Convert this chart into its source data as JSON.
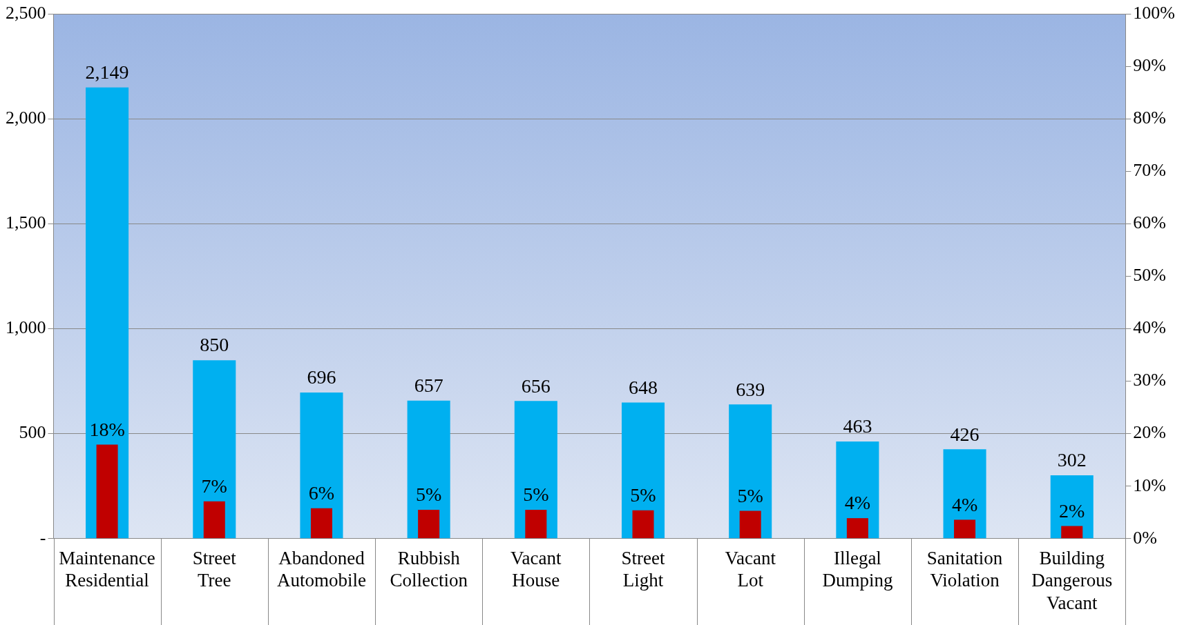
{
  "chart_data": {
    "type": "bar",
    "categories": [
      "Maintenance Residential",
      "Street Tree",
      "Abandoned Automobile",
      "Rubbish Collection",
      "Vacant House",
      "Street Light",
      "Vacant Lot",
      "Illegal Dumping",
      "Sanitation Violation",
      "Building Dangerous Vacant"
    ],
    "series": [
      {
        "color": "#00b0f0",
        "values": [
          2149,
          850,
          696,
          657,
          656,
          648,
          639,
          463,
          426,
          302
        ],
        "value_labels": [
          "2,149",
          "850",
          "696",
          "657",
          "656",
          "648",
          "639",
          "463",
          "426",
          "302"
        ]
      },
      {
        "color": "#c00000",
        "axis": "y2",
        "values": [
          17.9,
          7.1,
          5.8,
          5.5,
          5.5,
          5.4,
          5.3,
          3.9,
          3.6,
          2.4
        ],
        "value_labels": [
          "18%",
          "7%",
          "6%",
          "5%",
          "5%",
          "5%",
          "5%",
          "4%",
          "4%",
          "2%"
        ]
      }
    ],
    "ylim": [
      0,
      2500
    ],
    "yticks": [
      {
        "value": 0,
        "label": "-"
      },
      500,
      {
        "value": 1000,
        "label": "1,000"
      },
      {
        "value": 1500,
        "label": "1,500"
      },
      {
        "value": 2000,
        "label": "2,000"
      },
      {
        "value": 2500,
        "label": "2,500"
      }
    ],
    "y2lim": [
      0,
      100
    ],
    "y2ticks": [
      {
        "value": 0,
        "label": "0%"
      },
      {
        "value": 10,
        "label": "10%"
      },
      {
        "value": 20,
        "label": "20%"
      },
      {
        "value": 30,
        "label": "30%"
      },
      {
        "value": 40,
        "label": "40%"
      },
      {
        "value": 50,
        "label": "50%"
      },
      {
        "value": 60,
        "label": "60%"
      },
      {
        "value": 70,
        "label": "70%"
      },
      {
        "value": 80,
        "label": "80%"
      },
      {
        "value": 90,
        "label": "90%"
      },
      {
        "value": 100,
        "label": "100%"
      }
    ],
    "grid": "y"
  }
}
